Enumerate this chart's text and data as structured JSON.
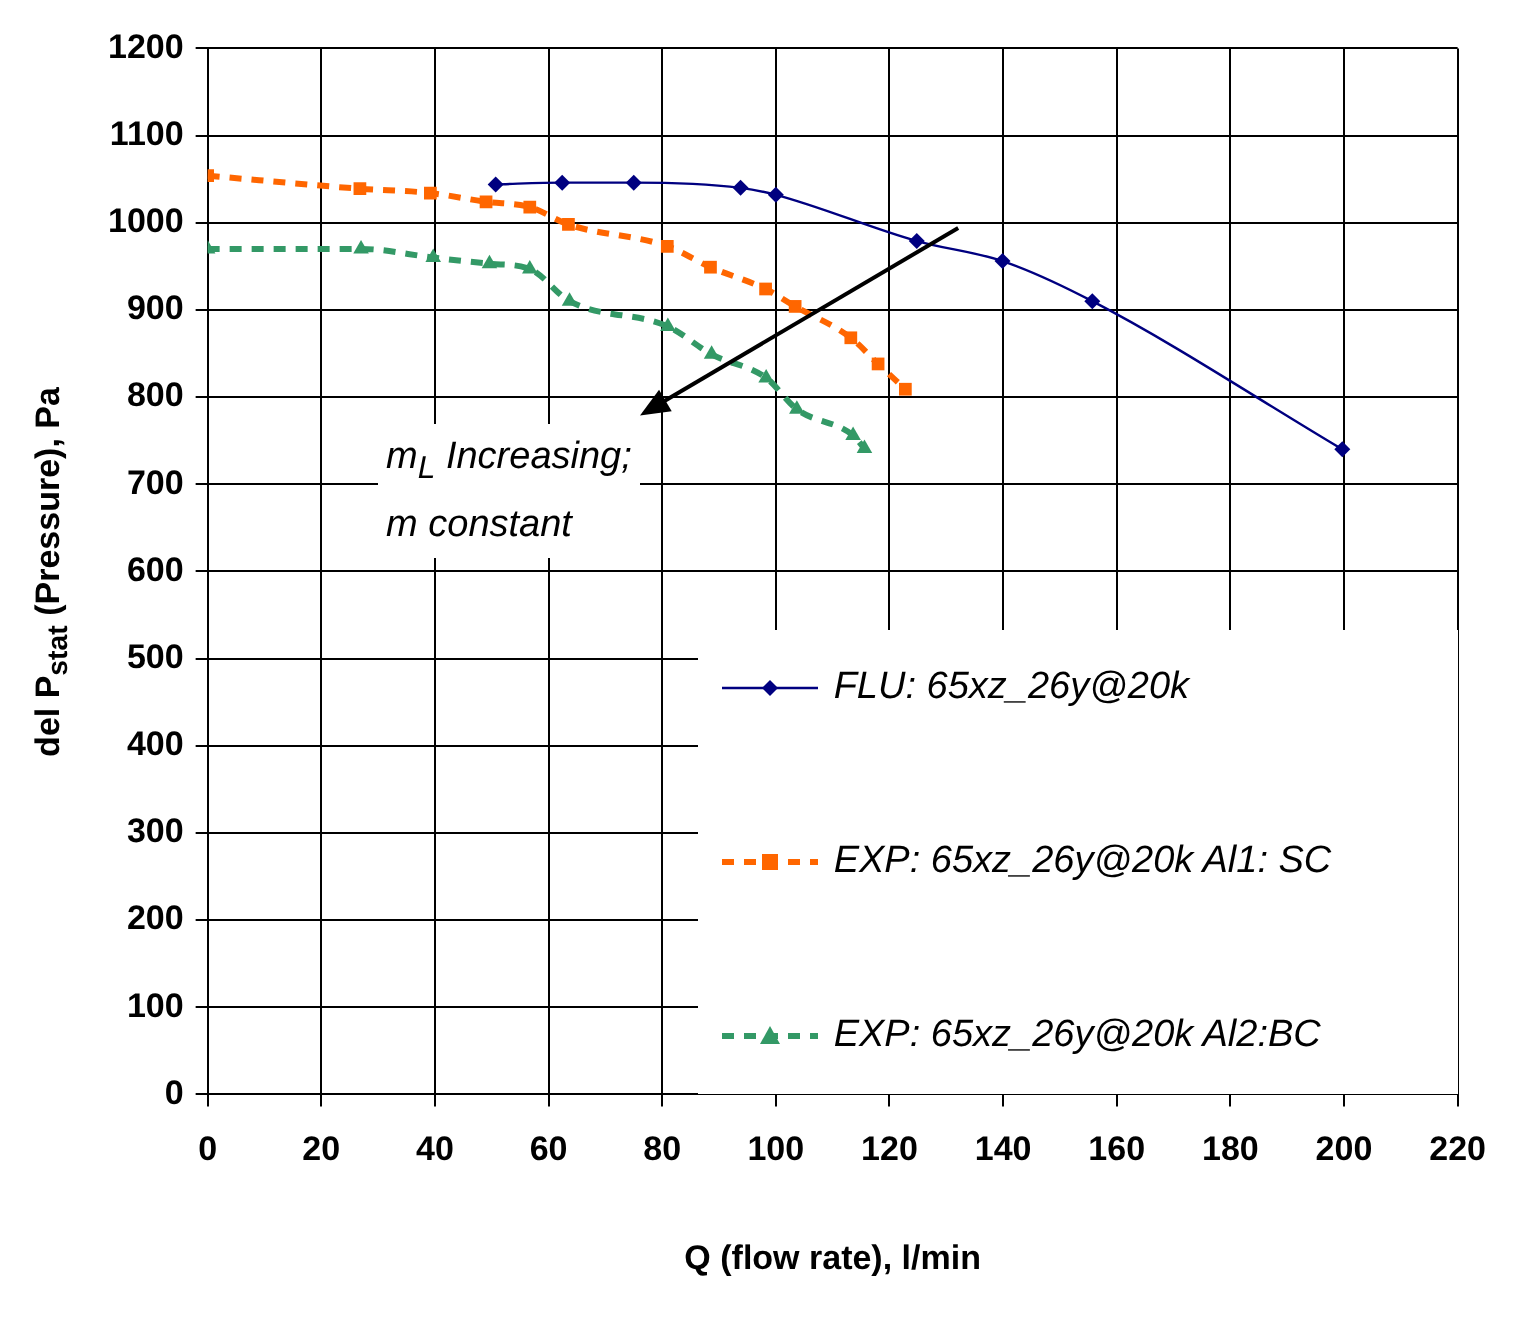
{
  "chart_data": {
    "type": "line",
    "xlabel": "Q (flow rate), l/min",
    "ylabel": "del P$_{stat}$ (Pressure), Pa",
    "xlim": [
      0,
      220
    ],
    "xticks": [
      0,
      20,
      40,
      60,
      80,
      100,
      120,
      140,
      160,
      180,
      200,
      220
    ],
    "ylim": [
      0,
      1200
    ],
    "yticks": [
      0,
      100,
      200,
      300,
      400,
      500,
      600,
      700,
      800,
      900,
      1000,
      1100,
      1200
    ],
    "grid": true,
    "legend": "bottom right",
    "annotations": [
      "m$_{L}$ Increasing;\nm constant"
    ],
    "series": [
      {
        "name": "FLU: 65xz_26y@20k",
        "color": "#000080",
        "marker": "diamond",
        "line_style": "solid",
        "x": [
          50.7,
          62.4,
          75,
          93.8,
          100,
          124.8,
          139.9,
          155.7,
          199.7
        ],
        "values": [
          1044,
          1046,
          1046,
          1040,
          1032,
          979,
          956,
          910,
          740
        ]
      },
      {
        "name": "EXP: 65xz_26y@20k Al1: SC",
        "color": "#ff6600",
        "marker": "square",
        "line_style": "dashed",
        "x": [
          0,
          26.8,
          39.2,
          49,
          56.7,
          63.5,
          80.9,
          88.5,
          98.2,
          103.4,
          113.2,
          118,
          122.8
        ],
        "values": [
          1054,
          1039,
          1034,
          1024,
          1018,
          998,
          973,
          949,
          924,
          904,
          868,
          838,
          809
        ]
      },
      {
        "name": "EXP: 65xz_26y@20k Al2:BC",
        "color": "#339966",
        "marker": "triangle",
        "line_style": "dashed",
        "x": [
          0,
          27,
          39.7,
          49.6,
          56.7,
          63.7,
          81,
          88.7,
          98.3,
          103.7,
          113.6,
          115.6
        ],
        "values": [
          970,
          970,
          960,
          953,
          947,
          910,
          881,
          849,
          822,
          786,
          756,
          741
        ]
      }
    ]
  }
}
